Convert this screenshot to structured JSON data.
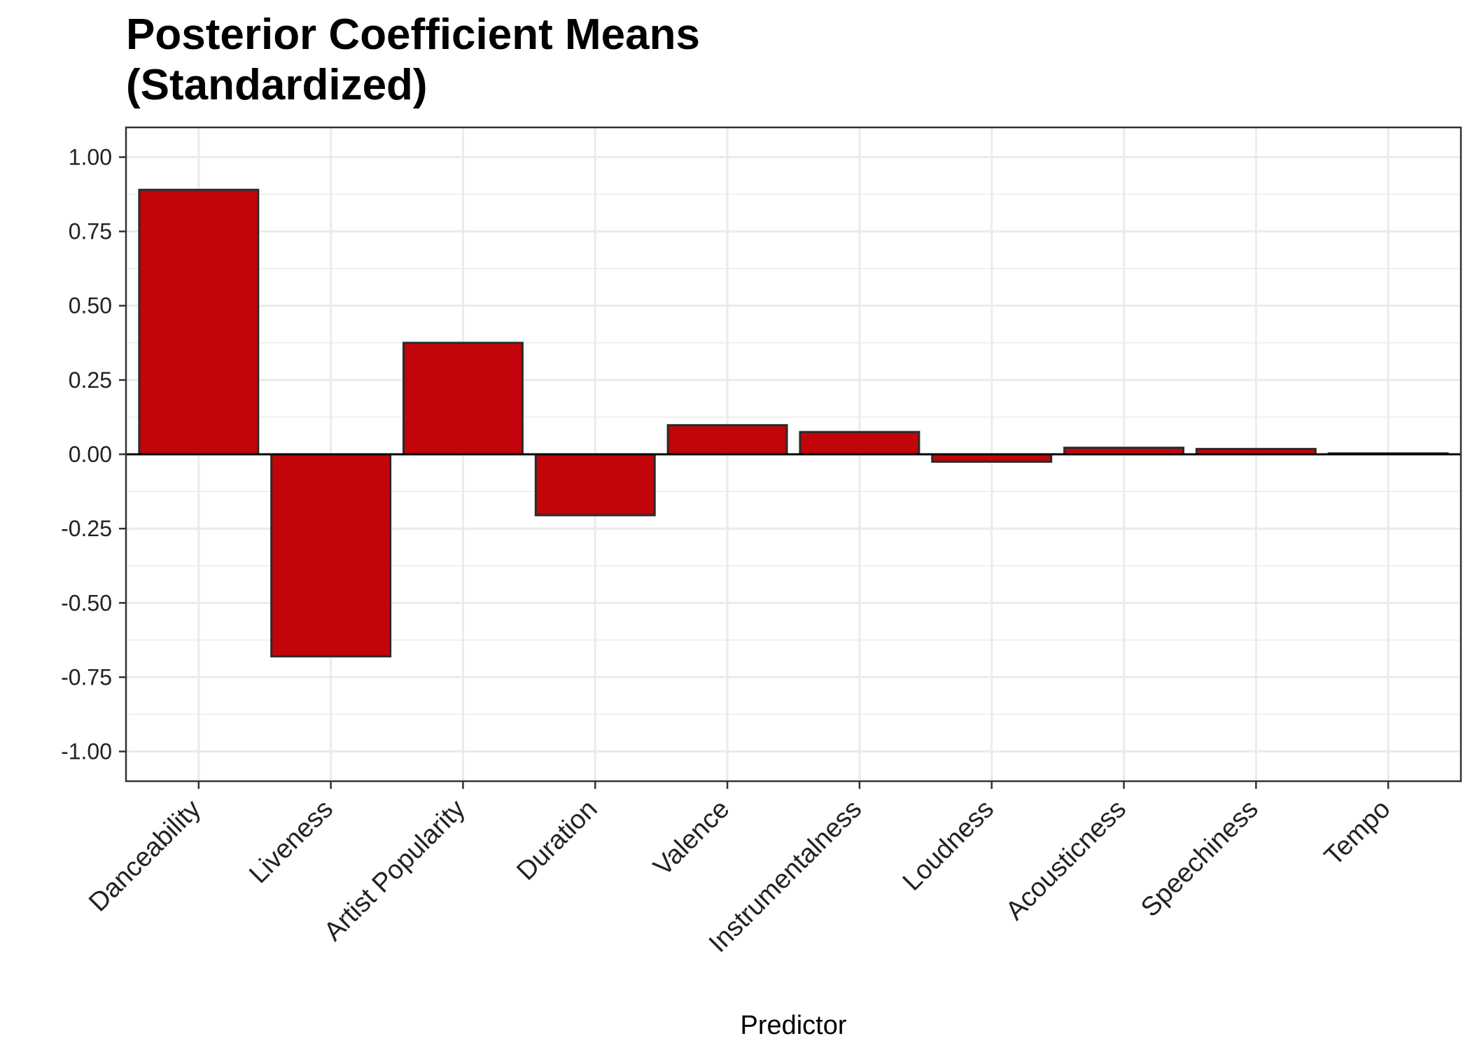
{
  "chart_data": {
    "type": "bar",
    "title_lines": [
      "Posterior Coefficient Means",
      "(Standardized)"
    ],
    "xlabel": "Predictor",
    "ylabel": "",
    "categories": [
      "Danceability",
      "Liveness",
      "Artist Popularity",
      "Duration",
      "Valence",
      "Instrumentalness",
      "Loudness",
      "Acousticness",
      "Speechiness",
      "Tempo"
    ],
    "values": [
      0.89,
      -0.68,
      0.375,
      -0.205,
      0.098,
      0.075,
      -0.025,
      0.022,
      0.018,
      0.003
    ],
    "ylim": [
      -1.1,
      1.1
    ],
    "yticks": [
      1.0,
      0.75,
      0.5,
      0.25,
      0.0,
      -0.25,
      -0.5,
      -0.75,
      -1.0
    ],
    "ytick_labels": [
      "1.00",
      "0.75",
      "0.50",
      "0.25",
      "0.00",
      "-0.25",
      "-0.50",
      "-0.75",
      "-1.00"
    ],
    "grid": true,
    "legend": "none",
    "colors": {
      "bar_fill": "#c1050b",
      "bar_stroke": "#2b2b2b",
      "grid": "#ebebeb",
      "axis": "#333333",
      "zero_line": "#000000"
    }
  }
}
